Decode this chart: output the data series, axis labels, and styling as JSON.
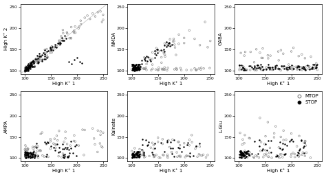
{
  "background_color": "#ffffff",
  "xlim": [
    92,
    258
  ],
  "ylim": [
    92,
    258
  ],
  "xticks": [
    100,
    150,
    200,
    250
  ],
  "yticks": [
    100,
    150,
    200,
    250
  ],
  "xlabel": "High K⁺ 1",
  "subplot_ylabels": [
    "High K⁺ 2",
    "NMDA",
    "GABA",
    "AMPA",
    "Kainate",
    "L-Glu"
  ],
  "open_color": "#888888",
  "closed_color": "#000000",
  "open_size": 3.5,
  "closed_size": 3.0,
  "seed": 7
}
